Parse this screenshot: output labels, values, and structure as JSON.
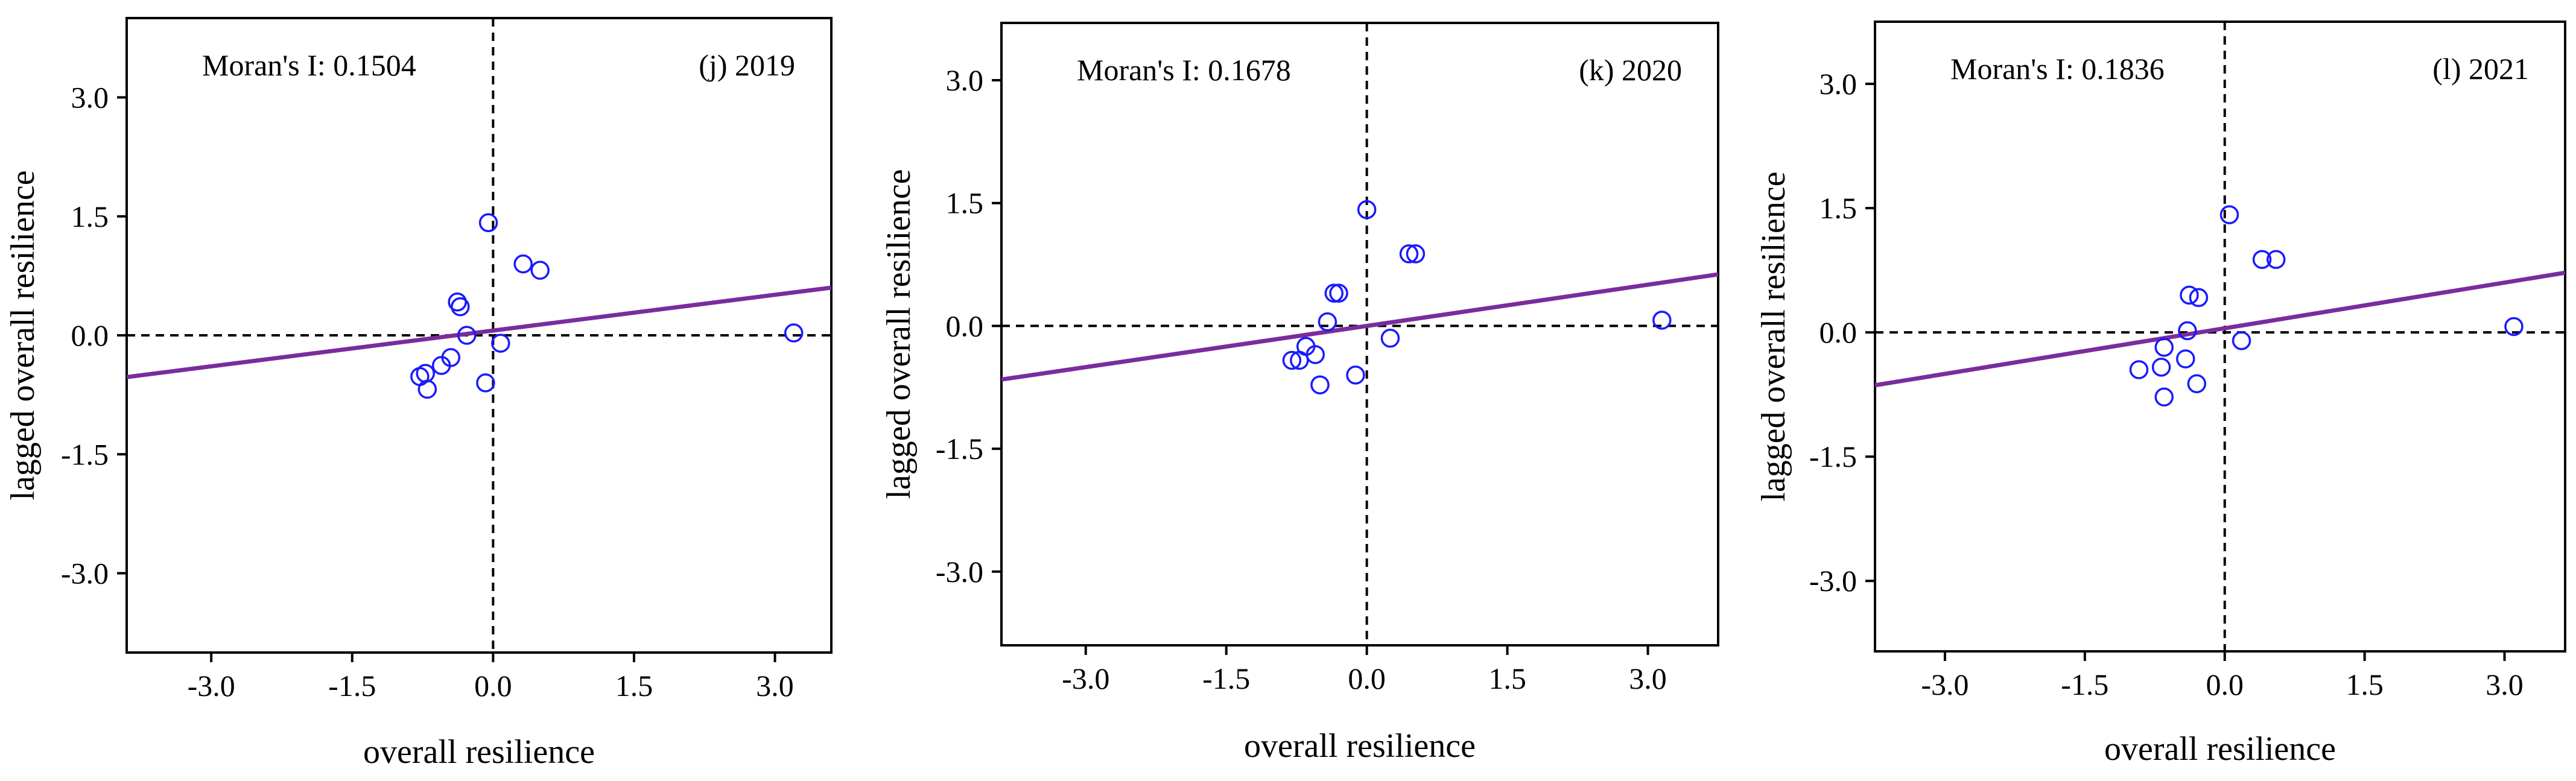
{
  "chart_data": [
    {
      "type": "scatter",
      "panel": "(j) 2019",
      "moran": "Moran's I: 0.1504",
      "xlabel": "overall resilience",
      "ylabel": "lagged overall resilience",
      "xlim": [
        -3.9,
        3.6
      ],
      "ylim": [
        -4.0,
        4.0
      ],
      "xticks": [
        -3.0,
        -1.5,
        0.0,
        1.5,
        3.0
      ],
      "yticks": [
        -3.0,
        -1.5,
        0.0,
        1.5,
        3.0
      ],
      "tick_labels": [
        "-3.0",
        "-1.5",
        "0.0",
        "1.5",
        "3.0"
      ],
      "slope": 0.1504,
      "intercept": 0.06,
      "line_color": "#7a2c9e",
      "marker_color": "#1a1aff",
      "points": [
        {
          "x": -0.05,
          "y": 1.42
        },
        {
          "x": 0.32,
          "y": 0.9
        },
        {
          "x": 0.5,
          "y": 0.82
        },
        {
          "x": -0.38,
          "y": 0.42
        },
        {
          "x": -0.35,
          "y": 0.36
        },
        {
          "x": -0.28,
          "y": 0.0
        },
        {
          "x": 0.08,
          "y": -0.1
        },
        {
          "x": -0.45,
          "y": -0.28
        },
        {
          "x": -0.55,
          "y": -0.38
        },
        {
          "x": -0.72,
          "y": -0.48
        },
        {
          "x": -0.78,
          "y": -0.52
        },
        {
          "x": -0.7,
          "y": -0.68
        },
        {
          "x": -0.08,
          "y": -0.6
        },
        {
          "x": 3.2,
          "y": 0.03
        }
      ]
    },
    {
      "type": "scatter",
      "panel": "(k) 2020",
      "moran": "Moran's I: 0.1678",
      "xlabel": "overall resilience",
      "ylabel": "lagged overall resilience",
      "xlim": [
        -3.9,
        3.75
      ],
      "ylim": [
        -3.9,
        3.7
      ],
      "xticks": [
        -3.0,
        -1.5,
        0.0,
        1.5,
        3.0
      ],
      "yticks": [
        -3.0,
        -1.5,
        0.0,
        1.5,
        3.0
      ],
      "tick_labels": [
        "-3.0",
        "-1.5",
        "0.0",
        "1.5",
        "3.0"
      ],
      "slope": 0.1678,
      "intercept": 0.0,
      "line_color": "#7a2c9e",
      "marker_color": "#1a1aff",
      "points": [
        {
          "x": 0.0,
          "y": 1.42
        },
        {
          "x": 0.45,
          "y": 0.88
        },
        {
          "x": 0.52,
          "y": 0.88
        },
        {
          "x": -0.35,
          "y": 0.4
        },
        {
          "x": -0.3,
          "y": 0.4
        },
        {
          "x": -0.42,
          "y": 0.05
        },
        {
          "x": 0.25,
          "y": -0.15
        },
        {
          "x": -0.65,
          "y": -0.25
        },
        {
          "x": -0.55,
          "y": -0.35
        },
        {
          "x": -0.8,
          "y": -0.42
        },
        {
          "x": -0.72,
          "y": -0.42
        },
        {
          "x": -0.12,
          "y": -0.6
        },
        {
          "x": -0.5,
          "y": -0.72
        },
        {
          "x": 3.15,
          "y": 0.07
        }
      ]
    },
    {
      "type": "scatter",
      "panel": "(l) 2021",
      "moran": "Moran's I: 0.1836",
      "xlabel": "overall resilience",
      "ylabel": "lagged overall resilience",
      "xlim": [
        -3.75,
        3.65
      ],
      "ylim": [
        -3.85,
        3.75
      ],
      "xticks": [
        -3.0,
        -1.5,
        0.0,
        1.5,
        3.0
      ],
      "yticks": [
        -3.0,
        -1.5,
        0.0,
        1.5,
        3.0
      ],
      "tick_labels": [
        "-3.0",
        "-1.5",
        "0.0",
        "1.5",
        "3.0"
      ],
      "slope": 0.1836,
      "intercept": 0.05,
      "line_color": "#7a2c9e",
      "marker_color": "#1a1aff",
      "points": [
        {
          "x": 0.05,
          "y": 1.42
        },
        {
          "x": 0.4,
          "y": 0.88
        },
        {
          "x": 0.55,
          "y": 0.88
        },
        {
          "x": -0.38,
          "y": 0.45
        },
        {
          "x": -0.28,
          "y": 0.42
        },
        {
          "x": -0.4,
          "y": 0.02
        },
        {
          "x": 0.18,
          "y": -0.1
        },
        {
          "x": -0.65,
          "y": -0.18
        },
        {
          "x": -0.42,
          "y": -0.32
        },
        {
          "x": -0.68,
          "y": -0.42
        },
        {
          "x": -0.92,
          "y": -0.45
        },
        {
          "x": -0.3,
          "y": -0.62
        },
        {
          "x": -0.65,
          "y": -0.78
        },
        {
          "x": 3.1,
          "y": 0.07
        }
      ]
    }
  ]
}
